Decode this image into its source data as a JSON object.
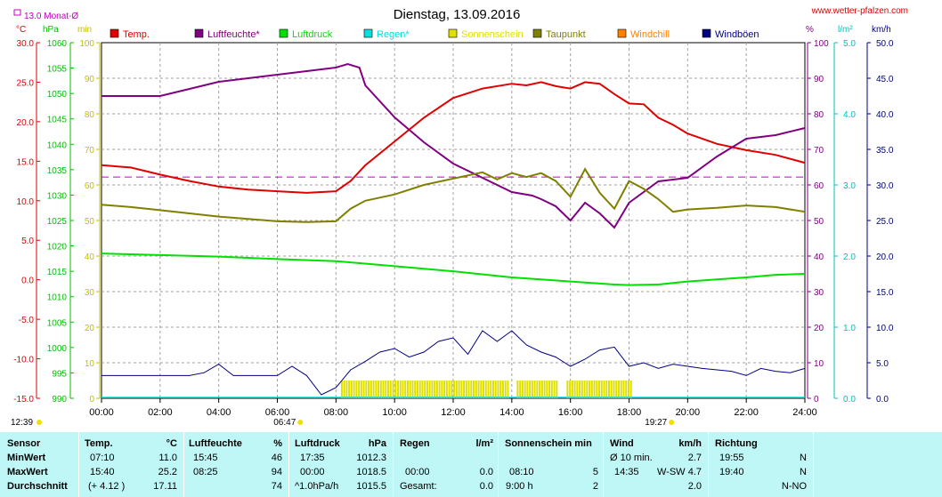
{
  "title": "Dienstag, 13.09.2016",
  "website": "www.wetter-pfalzen.com",
  "monthly_avg_label": "13.0 Monat-Ø",
  "axes": {
    "temp_unit": "°C",
    "pressure_unit": "hPa",
    "sun_unit": "min",
    "humidity_unit": "%",
    "rain_unit": "l/m²",
    "wind_unit": "km/h"
  },
  "legend": [
    {
      "label": "Temp.",
      "color": "#e00000"
    },
    {
      "label": "Luftfeuchte*",
      "color": "#800080"
    },
    {
      "label": "Luftdruck",
      "color": "#00e000"
    },
    {
      "label": "Regen*",
      "color": "#00e0e0"
    },
    {
      "label": "Sonnenschein",
      "color": "#e0e000"
    },
    {
      "label": "Taupunkt",
      "color": "#808000"
    },
    {
      "label": "Windchill",
      "color": "#ff8000"
    },
    {
      "label": "Windböen",
      "color": "#000080"
    }
  ],
  "markers": {
    "sunrise": "06:47",
    "sunset": "19:27",
    "moonrise": "12:39"
  },
  "chart_data": {
    "type": "line",
    "x_ticks": [
      "00:00",
      "02:00",
      "04:00",
      "06:00",
      "08:00",
      "10:00",
      "12:00",
      "14:00",
      "16:00",
      "18:00",
      "20:00",
      "22:00",
      "24:00"
    ],
    "x_range_hours": [
      0,
      24
    ],
    "grid": true,
    "temp_axis": {
      "range": [
        -15,
        30
      ],
      "ticks": [
        "30.0",
        "25.0",
        "20.0",
        "15.0",
        "10.0",
        "5.0",
        "0.0",
        "-5.0",
        "-10.0",
        "-15.0"
      ]
    },
    "pressure_axis": {
      "range": [
        990,
        1060
      ],
      "ticks": [
        "1060",
        "1055",
        "1050",
        "1045",
        "1040",
        "1035",
        "1030",
        "1025",
        "1020",
        "1015",
        "1010",
        "1005",
        "1000",
        "995",
        "990"
      ]
    },
    "sun_axis": {
      "range": [
        0,
        100
      ],
      "ticks": [
        "100",
        "90",
        "80",
        "70",
        "60",
        "50",
        "40",
        "30",
        "20",
        "10",
        "0"
      ]
    },
    "humidity_axis": {
      "range": [
        0,
        100
      ],
      "ticks": [
        "100",
        "90",
        "80",
        "70",
        "60",
        "50",
        "40",
        "30",
        "20",
        "10",
        "0"
      ]
    },
    "rain_axis": {
      "range": [
        0,
        5
      ],
      "ticks": [
        "5.0",
        "4.0",
        "3.0",
        "2.0",
        "1.0",
        "0.0"
      ]
    },
    "wind_axis": {
      "range": [
        0,
        50
      ],
      "ticks": [
        "50.0",
        "45.0",
        "40.0",
        "35.0",
        "30.0",
        "25.0",
        "20.0",
        "15.0",
        "10.0",
        "5.0",
        "0.0"
      ]
    },
    "series": [
      {
        "name": "Temp.",
        "axis": "temp",
        "x": [
          0,
          1,
          2,
          3,
          4,
          5,
          6,
          7,
          8,
          8.5,
          9,
          10,
          11,
          12,
          13,
          14,
          14.5,
          15,
          15.5,
          16,
          16.5,
          17,
          17.5,
          18,
          18.5,
          19,
          19.5,
          20,
          21,
          22,
          23,
          24
        ],
        "y": [
          14.5,
          14.2,
          13.3,
          12.5,
          11.8,
          11.4,
          11.2,
          11.0,
          11.2,
          12.5,
          14.5,
          17.5,
          20.5,
          23.0,
          24.2,
          24.8,
          24.6,
          25.0,
          24.5,
          24.2,
          25.0,
          24.8,
          23.5,
          22.3,
          22.2,
          20.5,
          19.6,
          18.5,
          17.2,
          16.4,
          15.8,
          14.8
        ]
      },
      {
        "name": "Luftfeuchte*",
        "axis": "humidity",
        "x": [
          0,
          1,
          2,
          3,
          4,
          5,
          6,
          7,
          8,
          8.4,
          8.8,
          9,
          10,
          11,
          12,
          13,
          14,
          14.7,
          15,
          15.5,
          16,
          16.5,
          17,
          17.5,
          18,
          19,
          20,
          21,
          22,
          23,
          24
        ],
        "y": [
          85,
          85,
          85,
          87,
          89,
          90,
          91,
          92,
          93,
          94,
          93,
          88,
          79,
          72,
          66,
          62,
          58,
          57,
          56,
          54,
          50,
          55,
          52,
          48,
          55,
          61,
          62,
          68,
          73,
          74,
          76
        ]
      },
      {
        "name": "Luftdruck",
        "axis": "pressure",
        "x": [
          0,
          2,
          4,
          6,
          8,
          10,
          12,
          14,
          16,
          17.5,
          18,
          19,
          20,
          21,
          22,
          23,
          24
        ],
        "y": [
          1018.5,
          1018.2,
          1017.9,
          1017.4,
          1017.0,
          1016.0,
          1015.0,
          1013.8,
          1013.0,
          1012.4,
          1012.3,
          1012.4,
          1013.0,
          1013.4,
          1013.8,
          1014.3,
          1014.5
        ]
      },
      {
        "name": "Taupunkt",
        "axis": "temp",
        "x": [
          0,
          1,
          2,
          3,
          4,
          5,
          6,
          7,
          8,
          8.5,
          9,
          10,
          11,
          12,
          13,
          13.5,
          14,
          14.5,
          15,
          15.5,
          16,
          16.5,
          17,
          17.5,
          18,
          18.5,
          19,
          19.5,
          20,
          21,
          22,
          23,
          24
        ],
        "y": [
          9.5,
          9.2,
          8.8,
          8.4,
          8.0,
          7.7,
          7.4,
          7.3,
          7.4,
          9.0,
          10.0,
          10.8,
          12.0,
          12.8,
          13.6,
          12.7,
          13.5,
          13.0,
          13.5,
          12.5,
          10.5,
          14.0,
          11.0,
          9.0,
          12.5,
          11.5,
          10.2,
          8.6,
          8.9,
          9.1,
          9.4,
          9.2,
          8.6
        ]
      },
      {
        "name": "Windböen",
        "axis": "wind",
        "x": [
          0,
          2,
          3,
          3.5,
          4,
          4.5,
          5,
          5.5,
          6,
          6.5,
          7,
          7.5,
          8,
          8.5,
          9,
          9.5,
          10,
          10.5,
          11,
          11.5,
          12,
          12.5,
          13,
          13.5,
          14,
          14.5,
          15,
          15.5,
          16,
          16.5,
          17,
          17.5,
          18,
          18.5,
          19,
          19.5,
          20,
          20.5,
          21,
          21.5,
          22,
          22.5,
          23,
          23.5,
          24
        ],
        "y": [
          3.2,
          3.2,
          3.2,
          3.6,
          4.8,
          3.2,
          3.2,
          3.2,
          3.2,
          4.5,
          3.2,
          0.5,
          1.5,
          4.0,
          5.2,
          6.5,
          7.0,
          5.8,
          6.5,
          8.0,
          8.5,
          6.2,
          9.5,
          8.0,
          9.5,
          7.5,
          6.5,
          5.8,
          4.5,
          5.5,
          6.8,
          7.2,
          4.5,
          5.0,
          4.2,
          4.8,
          4.5,
          4.2,
          4.0,
          3.8,
          3.2,
          4.2,
          3.8,
          3.6,
          4.2
        ]
      }
    ],
    "sunshine_bars": {
      "axis": "sun",
      "intervals": [
        [
          8.2,
          13.9
        ],
        [
          14.2,
          15.6
        ],
        [
          15.9,
          18.1
        ]
      ],
      "value": 5
    },
    "monthly_avg_temp": 13.0
  },
  "stats": {
    "headers": {
      "sensor": "Sensor",
      "temp": "Temp.",
      "temp_unit": "°C",
      "hum": "Luftfeuchte",
      "hum_unit": "%",
      "press": "Luftdruck",
      "press_unit": "hPa",
      "rain": "Regen",
      "rain_unit": "l/m²",
      "sun": "Sonnenschein min",
      "wind": "Wind",
      "wind_unit": "km/h",
      "dir": "Richtung"
    },
    "rows": [
      {
        "label": "MinWert",
        "temp_time": "07:10",
        "temp_val": "11.0",
        "hum_time": "15:45",
        "hum_val": "46",
        "press_time": "17:35",
        "press_val": "1012.3",
        "rain_time": "",
        "rain_val": "",
        "sun_time": "",
        "sun_val": "",
        "wind_a": "Ø 10 min.",
        "wind_b": "",
        "wind_val": "2.7",
        "dir_time": "19:55",
        "dir_val": "N"
      },
      {
        "label": "MaxWert",
        "temp_time": "15:40",
        "temp_val": "25.2",
        "hum_time": "08:25",
        "hum_val": "94",
        "press_time": "00:00",
        "press_val": "1018.5",
        "rain_time": "00:00",
        "rain_val": "0.0",
        "sun_time": "08:10",
        "sun_val": "5",
        "wind_a": "14:35",
        "wind_b": "W-SW",
        "wind_val": "4.7",
        "dir_time": "19:40",
        "dir_val": "N"
      },
      {
        "label": "Durchschnitt",
        "temp_time": "(+ 4.12 )",
        "temp_val": "17.11",
        "hum_time": "",
        "hum_val": "74",
        "press_time": "^1.0hPa/h",
        "press_val": "1015.5",
        "rain_time": "Gesamt:",
        "rain_val": "0.0",
        "sun_time": "9:00 h",
        "sun_val": "2",
        "wind_a": "",
        "wind_b": "",
        "wind_val": "2.0",
        "dir_time": "",
        "dir_val": "N-NO"
      }
    ]
  }
}
